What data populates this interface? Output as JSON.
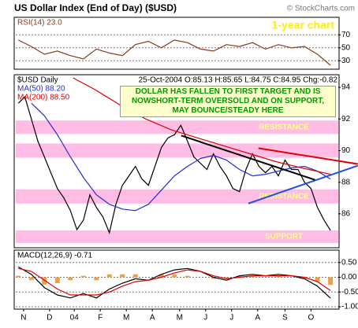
{
  "title": "US Dollar Index (End of Day) ($USD)",
  "credit": "© StockCharts.com",
  "period_label": "1-year chart",
  "annotation": "DOLLAR HAS FALLEN TO FIRST TARGET AND IS NOWSHORT-TERM OVERSOLD AND ON SUPPORT, MAY BOUNCE/STEADY HERE",
  "chart_data": [
    {
      "type": "line",
      "xlim": [
        0,
        12.4
      ],
      "ylim": [
        17,
        97
      ],
      "yticks": [
        70,
        50,
        30
      ],
      "grid": true,
      "series": [
        {
          "name": "RSI(14) 23.0",
          "color": "#8b3a1a",
          "x": [
            0.1,
            0.6,
            1.1,
            1.6,
            2.1,
            2.6,
            3.1,
            3.6,
            4.1,
            4.6,
            5.1,
            5.6,
            6.1,
            6.6,
            7.1,
            7.6,
            8.1,
            8.6,
            9.1,
            9.6,
            10.1,
            10.6,
            11.1,
            11.6,
            12.1
          ],
          "values": [
            62,
            52,
            40,
            45,
            38,
            33,
            48,
            42,
            38,
            55,
            60,
            50,
            62,
            58,
            48,
            45,
            55,
            52,
            58,
            48,
            55,
            50,
            52,
            40,
            23
          ]
        }
      ]
    },
    {
      "type": "line",
      "header": "25-Oct-2004 O:85.13 H:85.65 L:84.75 C:84.95 Chg:-0.82",
      "xlim": [
        0,
        12.4
      ],
      "ylim": [
        83.85,
        94.8
      ],
      "yticks": [
        94,
        92,
        90,
        88,
        86
      ],
      "grid": false,
      "zones": [
        {
          "label": "RESISTANCE",
          "range": [
            91.05,
            91.9
          ]
        },
        {
          "range": [
            89.55,
            90.45
          ]
        },
        {
          "label": "RESISTANCE",
          "range": [
            86.65,
            87.55
          ]
        },
        {
          "label": "SUPPORT",
          "range": [
            84.15,
            84.95
          ]
        }
      ],
      "trendlines": [
        {
          "color": "#e00000",
          "points": [
            [
              9.33,
              90.15
            ],
            [
              13.15,
              89.15
            ]
          ]
        },
        {
          "color": "#2050e0",
          "points": [
            [
              8.94,
              86.65
            ],
            [
              13.15,
              89.05
            ]
          ]
        },
        {
          "color": "#000000",
          "points": [
            [
              6.36,
              90.95
            ],
            [
              11.5,
              88.15
            ]
          ]
        }
      ],
      "series": [
        {
          "name": "$USD Daily",
          "color": "#000000",
          "x": [
            0.1,
            0.35,
            0.6,
            0.85,
            1.1,
            1.35,
            1.6,
            1.85,
            2.1,
            2.35,
            2.6,
            2.85,
            3.1,
            3.35,
            3.6,
            3.85,
            4.1,
            4.35,
            4.6,
            4.85,
            5.1,
            5.35,
            5.6,
            5.85,
            6.1,
            6.35,
            6.6,
            6.85,
            7.1,
            7.35,
            7.6,
            7.85,
            8.1,
            8.35,
            8.6,
            8.85,
            9.1,
            9.35,
            9.6,
            9.85,
            10.1,
            10.35,
            10.6,
            10.85,
            11.1,
            11.35,
            11.6,
            11.85,
            12.1
          ],
          "values": [
            93.0,
            93.4,
            92.0,
            90.6,
            89.6,
            88.6,
            87.6,
            87.0,
            86.2,
            85.0,
            85.6,
            87.2,
            86.4,
            85.8,
            84.8,
            86.6,
            87.8,
            88.4,
            89.0,
            88.2,
            87.8,
            89.0,
            90.2,
            90.8,
            91.0,
            91.6,
            90.6,
            89.6,
            89.2,
            88.8,
            89.8,
            89.0,
            88.4,
            87.6,
            87.4,
            88.8,
            89.8,
            89.0,
            88.6,
            89.0,
            88.4,
            89.4,
            88.8,
            88.8,
            88.0,
            87.6,
            86.4,
            85.6,
            84.95
          ]
        },
        {
          "name": "MA(50) 88.20",
          "color": "#2030d0",
          "x": [
            0.6,
            1.1,
            1.6,
            2.1,
            2.6,
            3.1,
            3.6,
            4.1,
            4.6,
            5.1,
            5.6,
            6.1,
            6.6,
            7.1,
            7.6,
            8.1,
            8.6,
            9.1,
            9.6,
            10.1,
            10.6,
            11.1,
            11.6,
            12.1
          ],
          "values": [
            93.0,
            92.2,
            91.0,
            89.6,
            88.3,
            87.2,
            86.6,
            86.3,
            86.2,
            86.6,
            87.5,
            88.4,
            89.0,
            89.5,
            89.7,
            89.4,
            88.8,
            88.4,
            88.5,
            88.7,
            88.9,
            89.0,
            88.7,
            88.2
          ]
        },
        {
          "name": "MA(200) 88.50",
          "color": "#e00000",
          "x": [
            2.2,
            3.0,
            4.0,
            5.0,
            6.0,
            7.0,
            8.0,
            9.0,
            10.0,
            11.0,
            12.1
          ],
          "values": [
            94.6,
            93.9,
            92.9,
            92.0,
            91.3,
            90.8,
            90.3,
            89.8,
            89.3,
            88.9,
            88.5
          ]
        }
      ]
    },
    {
      "type": "line",
      "xlim": [
        0,
        12.4
      ],
      "ylim": [
        -1.08,
        0.92
      ],
      "yticks": [
        {
          "value": 0.5,
          "label": "0.50"
        },
        {
          "value": 0,
          "label": "0.00"
        },
        {
          "value": -0.5,
          "label": "-0.50"
        },
        {
          "value": -1,
          "label": "-1.00"
        }
      ],
      "grid": true,
      "xticks": [
        {
          "value": 0.3,
          "label": "N"
        },
        {
          "value": 1.3,
          "label": "D"
        },
        {
          "value": 2.25,
          "label": "04"
        },
        {
          "value": 3.25,
          "label": "F"
        },
        {
          "value": 4.25,
          "label": "M"
        },
        {
          "value": 5.25,
          "label": "A"
        },
        {
          "value": 6.3,
          "label": "M"
        },
        {
          "value": 7.3,
          "label": "J"
        },
        {
          "value": 8.3,
          "label": "J"
        },
        {
          "value": 9.3,
          "label": "A"
        },
        {
          "value": 10.35,
          "label": "S"
        },
        {
          "value": 11.35,
          "label": "O"
        }
      ],
      "series": [
        {
          "style": "bar",
          "color": "#f0a040",
          "x": [
            0.1,
            0.6,
            1.1,
            1.6,
            2.1,
            2.6,
            3.1,
            3.6,
            4.1,
            4.6,
            5.1,
            5.6,
            6.1,
            6.6,
            7.1,
            7.6,
            8.1,
            8.6,
            9.1,
            9.6,
            10.1,
            10.6,
            11.1,
            11.6,
            12.1
          ],
          "values": [
            0.05,
            -0.1,
            -0.25,
            -0.2,
            -0.1,
            0.05,
            -0.1,
            0.1,
            0.1,
            0.1,
            0,
            0.1,
            0.1,
            0.05,
            0,
            -0.05,
            -0.05,
            0.05,
            0.05,
            0,
            0.05,
            0,
            -0.05,
            -0.15,
            -0.26
          ]
        },
        {
          "name": "MACD(12,26,9) -0.71",
          "color": "#000000",
          "x": [
            0.1,
            0.6,
            1.1,
            1.6,
            2.1,
            2.6,
            3.1,
            3.6,
            4.1,
            4.6,
            5.1,
            5.6,
            6.1,
            6.6,
            7.1,
            7.6,
            8.1,
            8.6,
            9.1,
            9.6,
            10.1,
            10.6,
            11.1,
            11.6,
            12.1
          ],
          "values": [
            0.35,
            0.1,
            -0.35,
            -0.6,
            -0.7,
            -0.55,
            -0.7,
            -0.4,
            -0.2,
            -0.05,
            -0.1,
            0.1,
            0.25,
            0.3,
            0.2,
            0,
            -0.1,
            0.05,
            0.1,
            0.05,
            0.1,
            0.05,
            -0.05,
            -0.3,
            -0.71
          ]
        },
        {
          "color": "#e00000",
          "x": [
            0.1,
            0.6,
            1.1,
            1.6,
            2.1,
            2.6,
            3.1,
            3.6,
            4.1,
            4.6,
            5.1,
            5.6,
            6.1,
            6.6,
            7.1,
            7.6,
            8.1,
            8.6,
            9.1,
            9.6,
            10.1,
            10.6,
            11.1,
            11.6,
            12.1
          ],
          "values": [
            0.3,
            0.2,
            -0.1,
            -0.4,
            -0.6,
            -0.6,
            -0.6,
            -0.5,
            -0.3,
            -0.15,
            -0.1,
            0,
            0.15,
            0.25,
            0.2,
            0.05,
            -0.05,
            0,
            0.05,
            0.05,
            0.05,
            0.05,
            0,
            -0.15,
            -0.45
          ]
        }
      ]
    }
  ]
}
